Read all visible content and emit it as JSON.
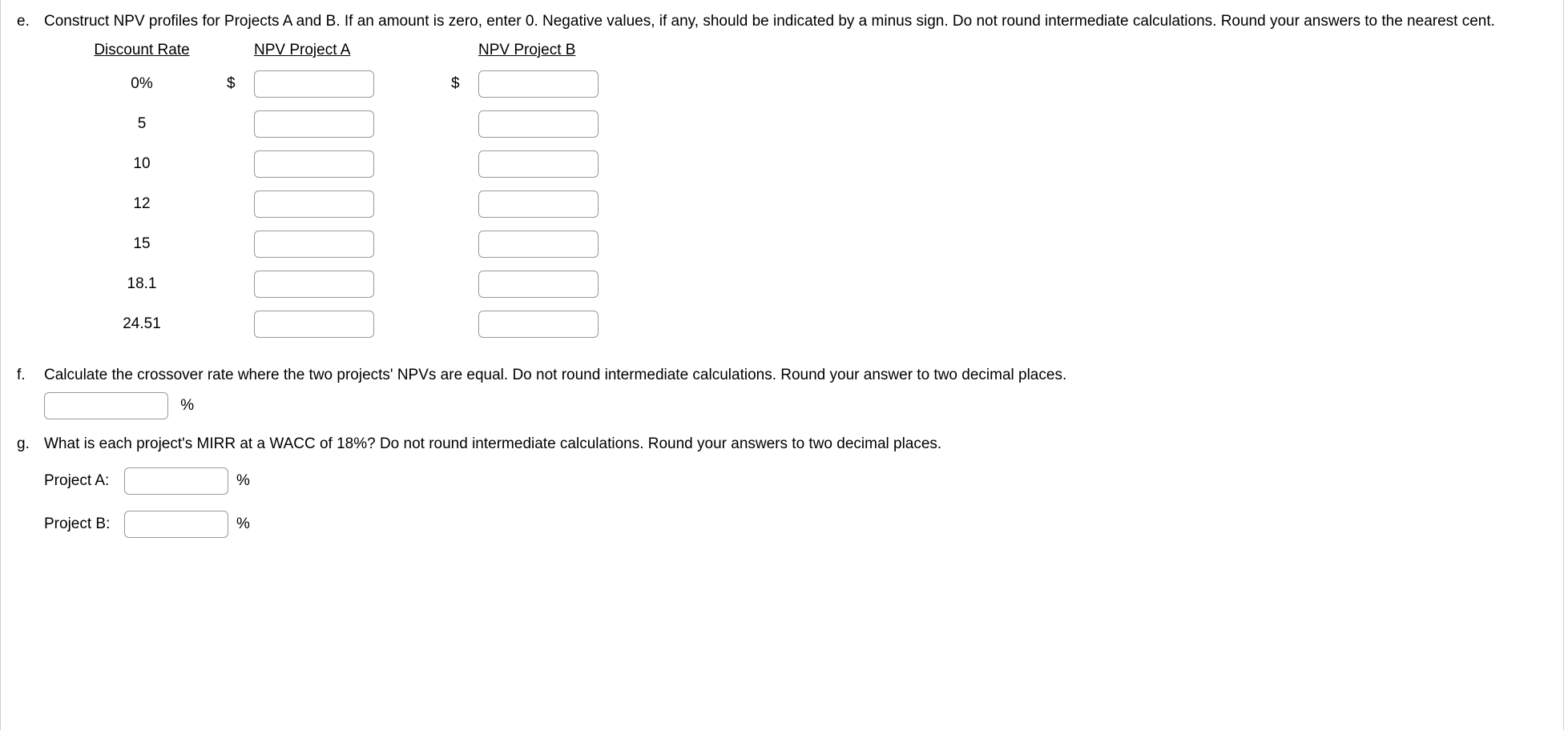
{
  "q_e": {
    "letter": "e.",
    "prompt": "Construct NPV profiles for Projects A and B. If an amount is zero, enter 0. Negative values, if any, should be indicated by a minus sign. Do not round intermediate calculations. Round your answers to the nearest cent.",
    "headers": {
      "rate": "Discount Rate",
      "proj_a": "NPV Project A",
      "proj_b": "NPV Project B"
    },
    "dollar": "$",
    "rates": [
      "0%",
      "5",
      "10",
      "12",
      "15",
      "18.1",
      "24.51"
    ]
  },
  "q_f": {
    "letter": "f.",
    "prompt": "Calculate the crossover rate where the two projects' NPVs are equal. Do not round intermediate calculations. Round your answer to two decimal places.",
    "unit": "%"
  },
  "q_g": {
    "letter": "g.",
    "prompt": "What is each project's MIRR at a WACC of 18%? Do not round intermediate calculations. Round your answers to two decimal places.",
    "proj_a_label": "Project A:",
    "proj_b_label": "Project B:",
    "unit": "%"
  }
}
